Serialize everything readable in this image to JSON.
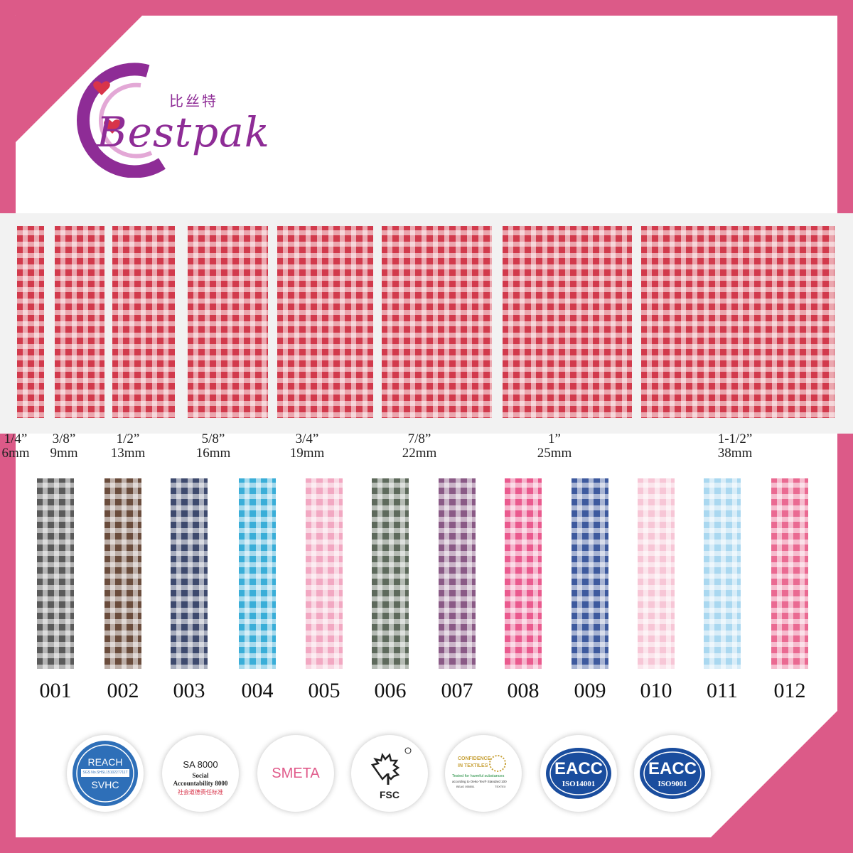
{
  "brand": {
    "name": "Bestpak",
    "chinese": "比丝特",
    "colors": {
      "purple": "#8e2c96",
      "heart": "#d8344a",
      "frame": "#dc5a88"
    }
  },
  "ribbon_color_main": "#d23a4c",
  "sizes": [
    {
      "inch": "1/4”",
      "mm": "6mm"
    },
    {
      "inch": "3/8”",
      "mm": "9mm"
    },
    {
      "inch": "1/2”",
      "mm": "13mm"
    },
    {
      "inch": "5/8”",
      "mm": "16mm"
    },
    {
      "inch": "3/4”",
      "mm": "19mm"
    },
    {
      "inch": "7/8”",
      "mm": "22mm"
    },
    {
      "inch": "1”",
      "mm": "25mm"
    },
    {
      "inch": "1-1/2”",
      "mm": "38mm"
    }
  ],
  "colors": [
    {
      "code": "001",
      "hex": "#5a5a5a"
    },
    {
      "code": "002",
      "hex": "#6a4c3c"
    },
    {
      "code": "003",
      "hex": "#3e4a6e"
    },
    {
      "code": "004",
      "hex": "#3aaed8"
    },
    {
      "code": "005",
      "hex": "#f2a8c2"
    },
    {
      "code": "006",
      "hex": "#5e6a5c"
    },
    {
      "code": "007",
      "hex": "#8a5a86"
    },
    {
      "code": "008",
      "hex": "#ea5a8e"
    },
    {
      "code": "009",
      "hex": "#3e5a9e"
    },
    {
      "code": "010",
      "hex": "#f7c6d6"
    },
    {
      "code": "011",
      "hex": "#aad8f0"
    },
    {
      "code": "012",
      "hex": "#ea6a92"
    }
  ],
  "certifications": {
    "reach": {
      "title": "REACH",
      "sub": "SGS No.SHSL1510227711T",
      "bottom": "SVHC"
    },
    "sa8000": {
      "title": "SA 8000",
      "line1": "Social",
      "line2": "Accountability 8000",
      "cn": "社会道德责任标准"
    },
    "smeta": {
      "title": "SMETA"
    },
    "fsc": {
      "title": "FSC"
    },
    "oeko": {
      "line1": "CONFIDENCE",
      "line2": "IN TEXTILES",
      "line3": "Tested for harmful substances",
      "line4": "according to Oeko-Tex® Standard 100",
      "code1": "BEAO 055551",
      "code2": "TEXTEX"
    },
    "eacc14001": {
      "title": "EACC",
      "sub": "ISO14001"
    },
    "eacc9001": {
      "title": "EACC",
      "sub": "ISO9001"
    }
  }
}
